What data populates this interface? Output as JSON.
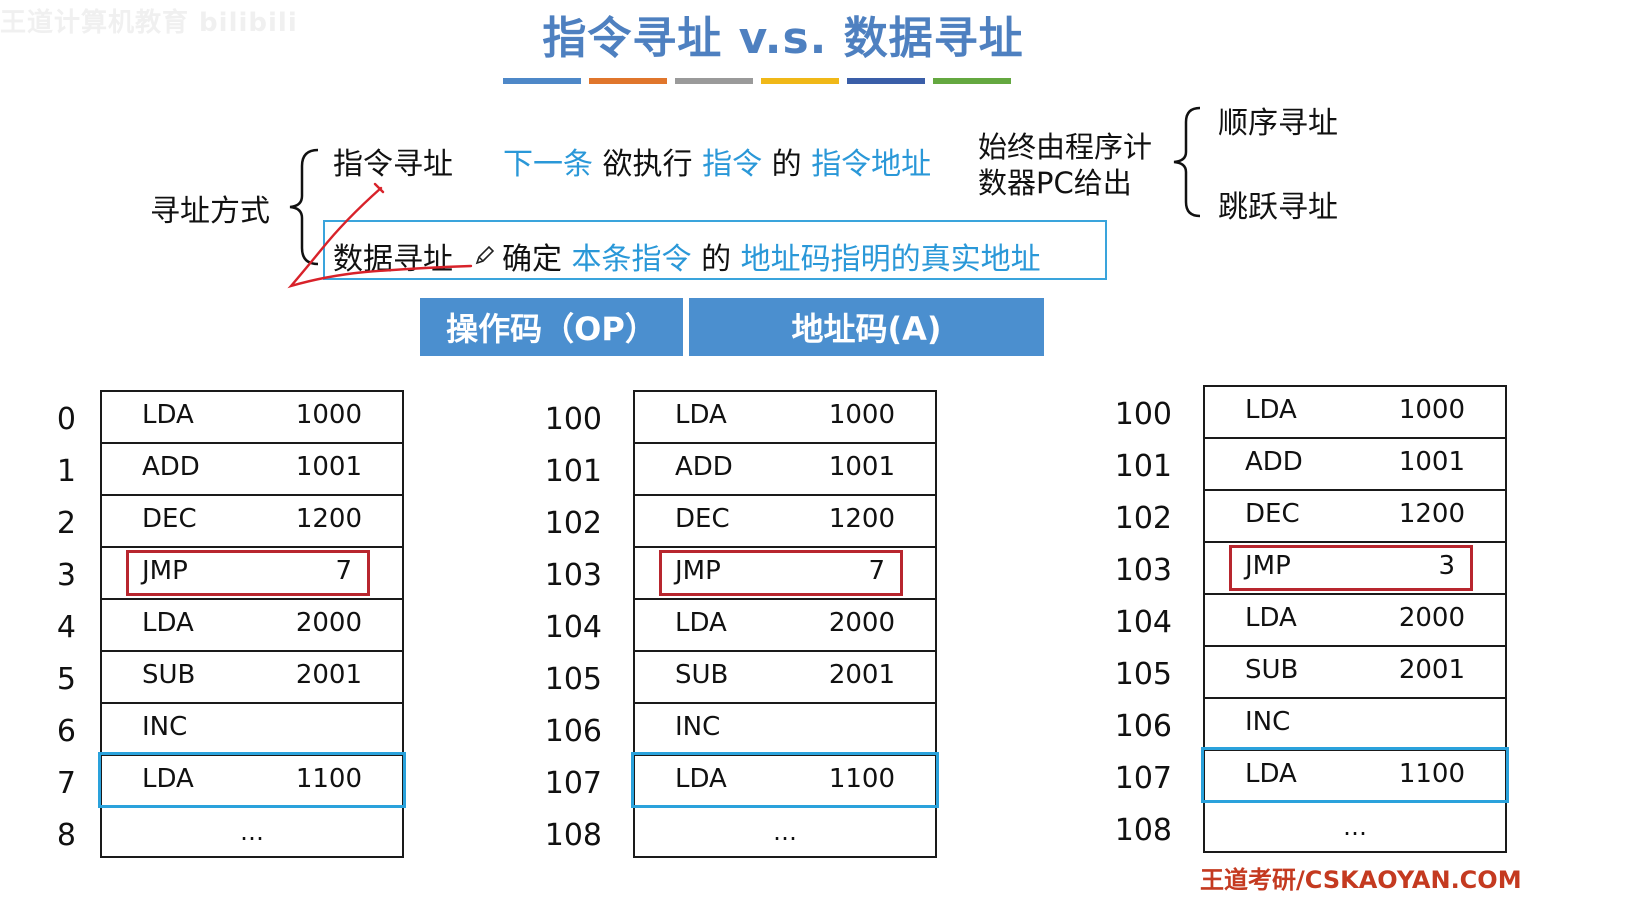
{
  "watermark": "王道计算机教育 bilibili",
  "title": "指令寻址 v.s. 数据寻址",
  "stripe_colors": [
    "#4e88c8",
    "#e0762c",
    "#9a9a9a",
    "#f0b818",
    "#3a5ea8",
    "#64a840"
  ],
  "addressing": {
    "root": "寻址方式",
    "instr_label": "指令寻址",
    "instr_desc": {
      "p1": "下一条",
      "p2": "欲执行",
      "p3": "指令",
      "p4": "的",
      "p5": "指令地址"
    },
    "pc_line1": "始终由程序计",
    "pc_line2": "数器PC给出",
    "seq": "顺序寻址",
    "jump": "跳跃寻址",
    "data_label": "数据寻址",
    "data_desc": {
      "p1": "确定",
      "p2": "本条指令",
      "p3": "的",
      "p4": "地址码指明的真实地址"
    }
  },
  "format": {
    "op": "操作码（OP）",
    "addr": "地址码(A)"
  },
  "tables": [
    {
      "indices": [
        "0",
        "1",
        "2",
        "3",
        "4",
        "5",
        "6",
        "7",
        "8"
      ],
      "rows": [
        {
          "op": "LDA",
          "addr": "1000"
        },
        {
          "op": "ADD",
          "addr": "1001"
        },
        {
          "op": "DEC",
          "addr": "1200"
        },
        {
          "op": "JMP",
          "addr": "7"
        },
        {
          "op": "LDA",
          "addr": "2000"
        },
        {
          "op": "SUB",
          "addr": "2001"
        },
        {
          "op": "INC",
          "addr": ""
        },
        {
          "op": "LDA",
          "addr": "1100"
        },
        {
          "op": "…",
          "addr": ""
        }
      ]
    },
    {
      "indices": [
        "100",
        "101",
        "102",
        "103",
        "104",
        "105",
        "106",
        "107",
        "108"
      ],
      "rows": [
        {
          "op": "LDA",
          "addr": "1000"
        },
        {
          "op": "ADD",
          "addr": "1001"
        },
        {
          "op": "DEC",
          "addr": "1200"
        },
        {
          "op": "JMP",
          "addr": "7"
        },
        {
          "op": "LDA",
          "addr": "2000"
        },
        {
          "op": "SUB",
          "addr": "2001"
        },
        {
          "op": "INC",
          "addr": ""
        },
        {
          "op": "LDA",
          "addr": "1100"
        },
        {
          "op": "…",
          "addr": ""
        }
      ]
    },
    {
      "indices": [
        "100",
        "101",
        "102",
        "103",
        "104",
        "105",
        "106",
        "107",
        "108"
      ],
      "rows": [
        {
          "op": "LDA",
          "addr": "1000"
        },
        {
          "op": "ADD",
          "addr": "1001"
        },
        {
          "op": "DEC",
          "addr": "1200"
        },
        {
          "op": "JMP",
          "addr": "3"
        },
        {
          "op": "LDA",
          "addr": "2000"
        },
        {
          "op": "SUB",
          "addr": "2001"
        },
        {
          "op": "INC",
          "addr": ""
        },
        {
          "op": "LDA",
          "addr": "1100"
        },
        {
          "op": "…",
          "addr": ""
        }
      ]
    }
  ],
  "footer": "王道考研/CSKAOYAN.COM"
}
